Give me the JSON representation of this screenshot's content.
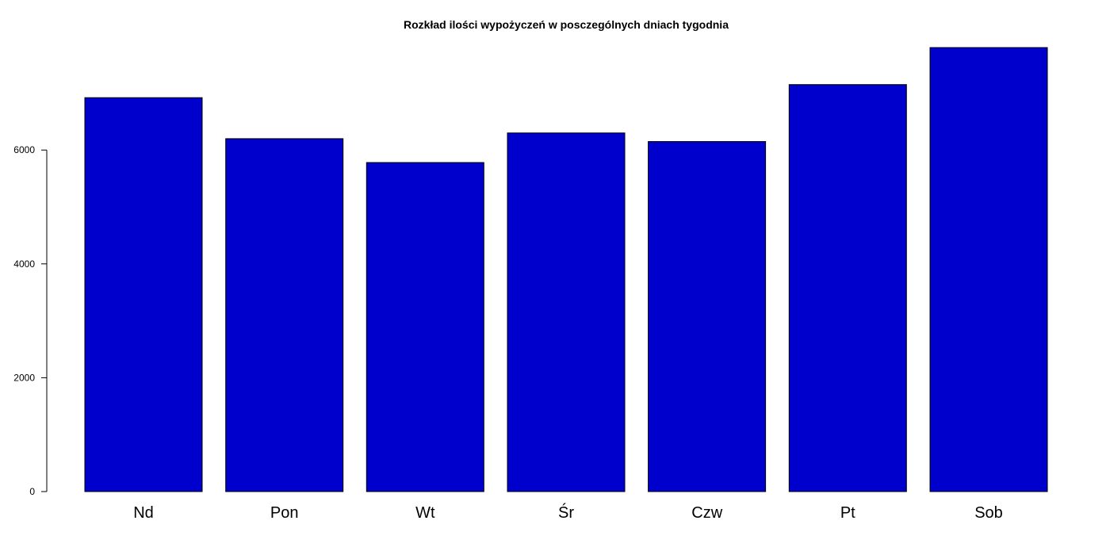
{
  "chart_data": {
    "type": "bar",
    "title": "Rozkład ilości wypożyczeń w posczególnych dniach tygodnia",
    "xlabel": "",
    "ylabel": "",
    "categories": [
      "Nd",
      "Pon",
      "Wt",
      "Śr",
      "Czw",
      "Pt",
      "Sob"
    ],
    "values": [
      6920,
      6200,
      5780,
      6300,
      6150,
      7150,
      7800
    ],
    "ylim": [
      0,
      7800
    ],
    "yticks": [
      0,
      2000,
      4000,
      6000
    ],
    "grid": false,
    "legend": "none",
    "bar_color": "#0000CC",
    "bar_border_color": "#000000"
  }
}
